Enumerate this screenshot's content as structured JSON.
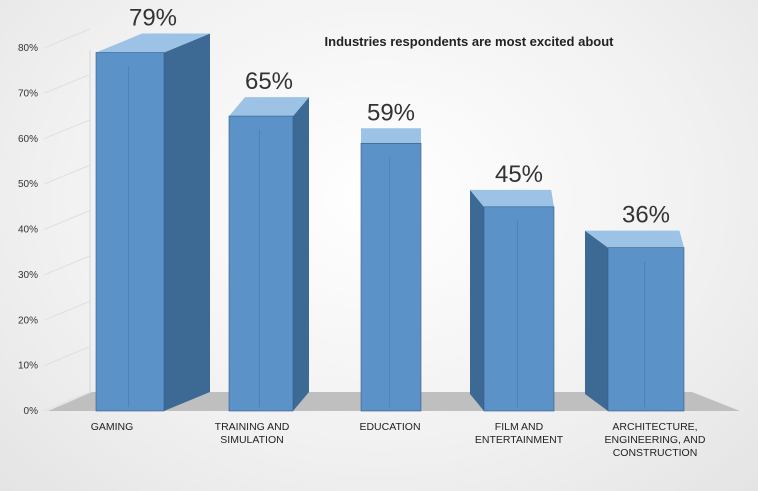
{
  "chart_data": {
    "type": "bar",
    "title": "Industries respondents are most excited about",
    "categories": [
      [
        "GAMING"
      ],
      [
        "TRAINING AND",
        "SIMULATION"
      ],
      [
        "EDUCATION"
      ],
      [
        "FILM AND",
        "ENTERTAINMENT"
      ],
      [
        "ARCHITECTURE,",
        "ENGINEERING, AND",
        "CONSTRUCTION"
      ]
    ],
    "values": [
      79,
      65,
      59,
      45,
      36
    ],
    "value_labels": [
      "79%",
      "65%",
      "59%",
      "45%",
      "36%"
    ],
    "yticks": [
      "0%",
      "10%",
      "20%",
      "30%",
      "40%",
      "50%",
      "60%",
      "70%",
      "80%"
    ],
    "ylim": [
      0,
      80
    ],
    "xlabel": "",
    "ylabel": "",
    "grid": false,
    "colors": {
      "front": "#5b93c8",
      "side": "#3d6a94",
      "top": "#9cc3e6",
      "floor": "#bfbfbf",
      "edge": "#2f5d87"
    }
  }
}
